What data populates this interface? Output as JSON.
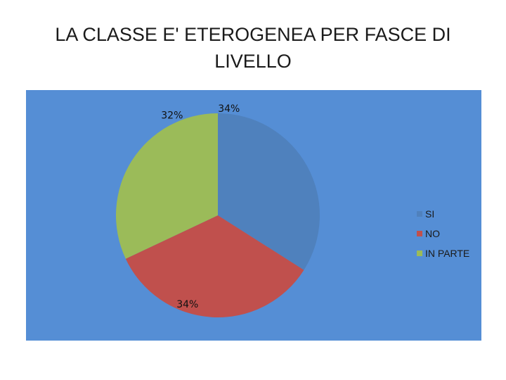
{
  "page": {
    "title": "LA CLASSE E' ETEROGENEA PER FASCE DI LIVELLO"
  },
  "chart_data": {
    "type": "pie",
    "title": "LA CLASSE E' ETEROGENEA PER FASCE DI LIVELLO",
    "background_color": "#558ed5",
    "categories": [
      "SI",
      "NO",
      "IN PARTE"
    ],
    "values": [
      34,
      34,
      32
    ],
    "data_labels": [
      "34%",
      "34%",
      "32%"
    ],
    "colors": [
      "#4f81bd",
      "#c0504d",
      "#9bbb59"
    ],
    "legend_position": "right"
  }
}
